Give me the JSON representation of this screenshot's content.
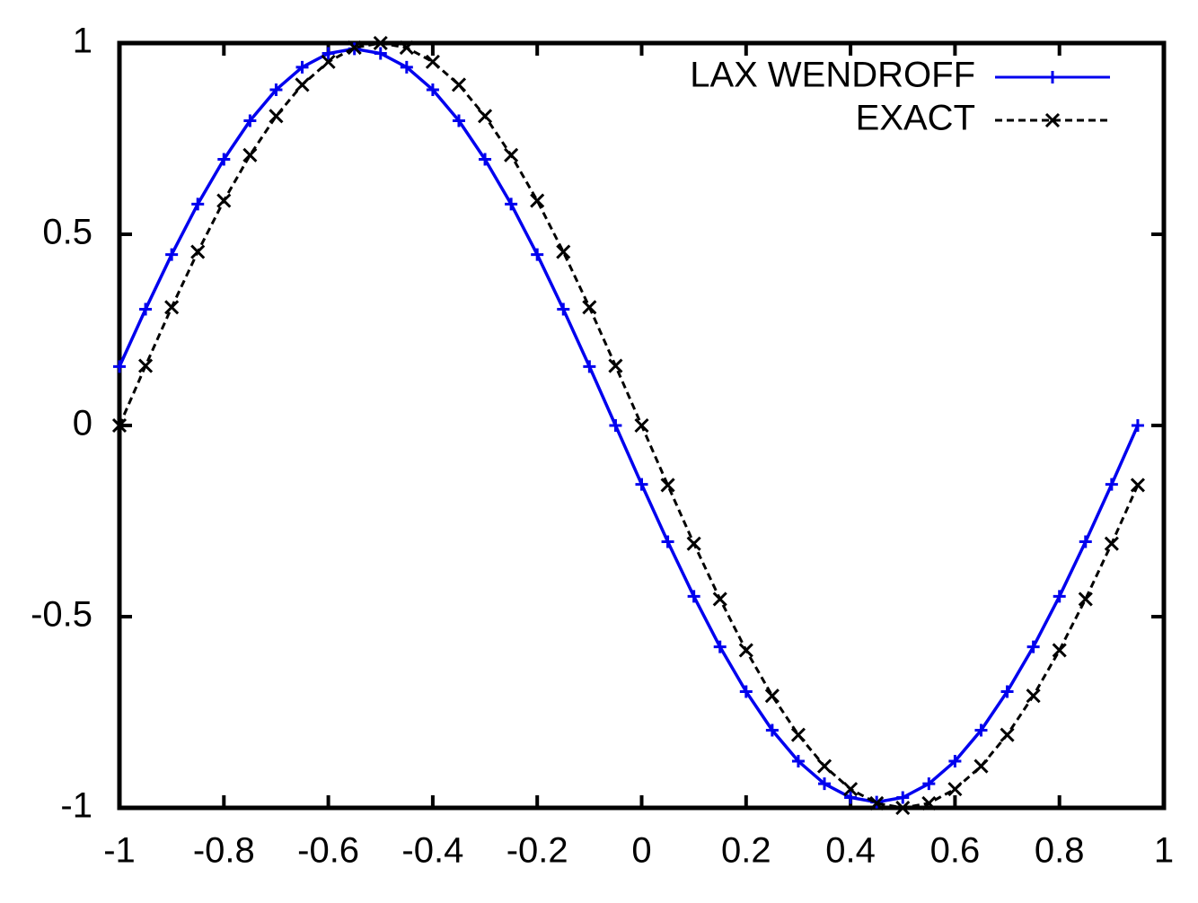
{
  "chart_data": {
    "type": "line",
    "x": [
      -1,
      -0.95,
      -0.9,
      -0.85,
      -0.8,
      -0.75,
      -0.7,
      -0.65,
      -0.6,
      -0.55,
      -0.5,
      -0.45,
      -0.4,
      -0.35,
      -0.3,
      -0.25,
      -0.2,
      -0.15,
      -0.1,
      -0.05,
      0,
      0.05,
      0.1,
      0.15,
      0.2,
      0.25,
      0.3,
      0.35,
      0.4,
      0.45,
      0.5,
      0.55,
      0.6,
      0.65,
      0.7,
      0.75,
      0.8,
      0.85,
      0.9,
      0.95
    ],
    "series": [
      {
        "name": "LAX WENDROFF",
        "color": "#0000ee",
        "dash": false,
        "marker": "plus",
        "values": [
          0.154,
          0.304,
          0.447,
          0.579,
          0.696,
          0.797,
          0.878,
          0.937,
          0.973,
          0.985,
          0.973,
          0.937,
          0.878,
          0.797,
          0.696,
          0.579,
          0.447,
          0.304,
          0.154,
          0,
          -0.154,
          -0.304,
          -0.447,
          -0.579,
          -0.696,
          -0.797,
          -0.878,
          -0.937,
          -0.973,
          -0.985,
          -0.973,
          -0.937,
          -0.878,
          -0.797,
          -0.696,
          -0.579,
          -0.447,
          -0.304,
          -0.154,
          0
        ]
      },
      {
        "name": "EXACT",
        "color": "#000000",
        "dash": true,
        "marker": "cross",
        "values": [
          0,
          0.156,
          0.309,
          0.454,
          0.588,
          0.707,
          0.809,
          0.891,
          0.951,
          0.988,
          1,
          0.988,
          0.951,
          0.891,
          0.809,
          0.707,
          0.588,
          0.454,
          0.309,
          0.156,
          0,
          -0.156,
          -0.309,
          -0.454,
          -0.588,
          -0.707,
          -0.809,
          -0.891,
          -0.951,
          -0.988,
          -1,
          -0.988,
          -0.951,
          -0.891,
          -0.809,
          -0.707,
          -0.588,
          -0.454,
          -0.309,
          -0.156
        ]
      }
    ],
    "xlim": [
      -1,
      1
    ],
    "xticks": [
      -1,
      -0.8,
      -0.6,
      -0.4,
      -0.2,
      0,
      0.2,
      0.4,
      0.6,
      0.8,
      1
    ],
    "ylim": [
      -1,
      1
    ],
    "yticks": [
      -1,
      -0.5,
      0,
      0.5,
      1
    ],
    "legend": "top-right"
  }
}
